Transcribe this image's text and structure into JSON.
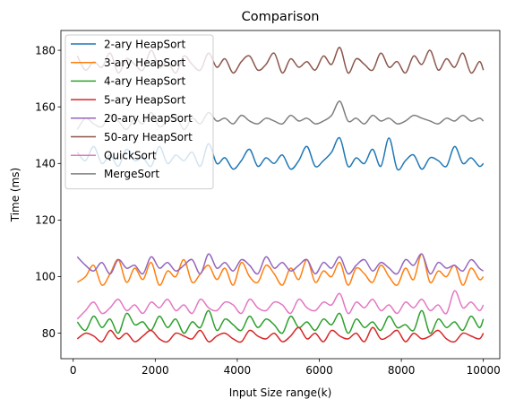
{
  "chart_data": {
    "type": "line",
    "title": "Comparison",
    "xlabel": "Input Size range(k)",
    "ylabel": "Time (ms)",
    "xlim": [
      -300,
      10400
    ],
    "ylim": [
      71,
      187
    ],
    "xticks": [
      0,
      2000,
      4000,
      6000,
      8000,
      10000
    ],
    "yticks": [
      80,
      100,
      120,
      140,
      160,
      180
    ],
    "legend_position": "top-left",
    "grid": false,
    "x": [
      100,
      300,
      500,
      700,
      900,
      1100,
      1300,
      1500,
      1700,
      1900,
      2100,
      2300,
      2500,
      2700,
      2900,
      3100,
      3300,
      3500,
      3700,
      3900,
      4100,
      4300,
      4500,
      4700,
      4900,
      5100,
      5300,
      5500,
      5700,
      5900,
      6100,
      6300,
      6500,
      6700,
      6900,
      7100,
      7300,
      7500,
      7700,
      7900,
      8100,
      8300,
      8500,
      8700,
      8900,
      9100,
      9300,
      9500,
      9700,
      9900,
      10000
    ],
    "series": [
      {
        "name": "2-ary HeapSort",
        "color": "#1f77b4",
        "values": [
          144,
          141,
          146,
          140,
          143,
          139,
          145,
          141,
          142,
          139,
          146,
          140,
          143,
          141,
          144,
          139,
          147,
          140,
          142,
          138,
          141,
          145,
          139,
          142,
          140,
          143,
          138,
          141,
          146,
          139,
          141,
          144,
          149,
          139,
          142,
          140,
          145,
          139,
          149,
          138,
          141,
          143,
          138,
          142,
          141,
          139,
          146,
          140,
          142,
          139,
          140
        ]
      },
      {
        "name": "3-ary HeapSort",
        "color": "#ff7f0e",
        "values": [
          98,
          100,
          104,
          97,
          101,
          106,
          98,
          103,
          99,
          105,
          97,
          102,
          100,
          106,
          98,
          101,
          104,
          99,
          103,
          97,
          105,
          100,
          98,
          104,
          101,
          97,
          103,
          99,
          106,
          98,
          102,
          100,
          105,
          97,
          103,
          101,
          98,
          104,
          100,
          97,
          103,
          99,
          108,
          98,
          102,
          100,
          104,
          97,
          103,
          99,
          100
        ]
      },
      {
        "name": "4-ary HeapSort",
        "color": "#2ca02c",
        "values": [
          84,
          81,
          86,
          82,
          85,
          80,
          87,
          83,
          84,
          81,
          86,
          82,
          85,
          80,
          84,
          82,
          88,
          81,
          85,
          83,
          81,
          86,
          82,
          85,
          83,
          80,
          86,
          82,
          84,
          81,
          85,
          83,
          87,
          80,
          85,
          82,
          84,
          81,
          86,
          82,
          83,
          81,
          88,
          80,
          85,
          82,
          84,
          81,
          86,
          82,
          85
        ]
      },
      {
        "name": "5-ary HeapSort",
        "color": "#d62728",
        "values": [
          78,
          80,
          79,
          77,
          81,
          78,
          80,
          77,
          79,
          81,
          78,
          77,
          80,
          79,
          78,
          81,
          77,
          79,
          80,
          78,
          77,
          81,
          79,
          78,
          80,
          77,
          79,
          82,
          78,
          80,
          77,
          81,
          79,
          78,
          80,
          77,
          82,
          78,
          79,
          81,
          77,
          80,
          78,
          79,
          81,
          78,
          77,
          80,
          79,
          78,
          80
        ]
      },
      {
        "name": "20-ary HeapSort",
        "color": "#9467bd",
        "values": [
          107,
          104,
          102,
          105,
          101,
          106,
          103,
          104,
          101,
          107,
          103,
          105,
          102,
          104,
          106,
          101,
          108,
          103,
          105,
          102,
          106,
          104,
          101,
          107,
          103,
          105,
          102,
          104,
          106,
          101,
          105,
          103,
          107,
          101,
          104,
          106,
          102,
          105,
          103,
          101,
          106,
          104,
          108,
          101,
          105,
          103,
          104,
          102,
          106,
          103,
          102
        ]
      },
      {
        "name": "50-ary HeapSort",
        "color": "#8c564b",
        "values": [
          178,
          173,
          176,
          174,
          179,
          172,
          177,
          175,
          173,
          180,
          174,
          176,
          172,
          178,
          175,
          173,
          179,
          174,
          177,
          172,
          176,
          178,
          173,
          175,
          179,
          172,
          177,
          174,
          176,
          173,
          178,
          175,
          181,
          172,
          177,
          175,
          173,
          179,
          174,
          176,
          172,
          178,
          175,
          180,
          173,
          177,
          174,
          179,
          172,
          176,
          173
        ]
      },
      {
        "name": "QuickSort",
        "color": "#e377c2",
        "values": [
          85,
          88,
          91,
          87,
          89,
          92,
          88,
          90,
          87,
          91,
          89,
          92,
          88,
          90,
          87,
          92,
          89,
          88,
          91,
          90,
          87,
          92,
          89,
          88,
          91,
          90,
          87,
          92,
          89,
          88,
          91,
          90,
          94,
          87,
          91,
          89,
          92,
          88,
          90,
          87,
          91,
          89,
          92,
          88,
          90,
          87,
          95,
          89,
          91,
          88,
          90
        ]
      },
      {
        "name": "MergeSort",
        "color": "#7f7f7f",
        "values": [
          152,
          156,
          154,
          153,
          157,
          155,
          152,
          156,
          154,
          158,
          153,
          155,
          157,
          152,
          156,
          154,
          158,
          155,
          156,
          154,
          157,
          155,
          154,
          156,
          155,
          154,
          157,
          155,
          156,
          154,
          155,
          157,
          162,
          155,
          156,
          154,
          157,
          155,
          156,
          154,
          155,
          157,
          156,
          155,
          154,
          156,
          155,
          157,
          155,
          156,
          155
        ]
      }
    ]
  }
}
